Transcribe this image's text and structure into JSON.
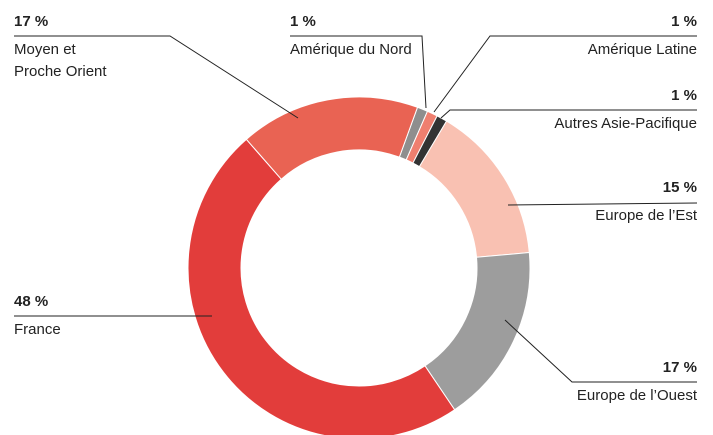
{
  "chart_data": {
    "type": "donut",
    "categories": [
      "Amérique du Nord",
      "Amérique Latine",
      "Autres Asie-Pacifique",
      "Europe de l’Est",
      "Europe de l’Ouest",
      "France",
      "Moyen et Proche Orient"
    ],
    "values": [
      1,
      1,
      1,
      15,
      17,
      48,
      17
    ],
    "value_labels": [
      "1 %",
      "1 %",
      "1 %",
      "15 %",
      "17 %",
      "48 %",
      "17 %"
    ],
    "colors": [
      "#8e8e8e",
      "#ef7f6f",
      "#333333",
      "#f9c1b2",
      "#9d9d9d",
      "#e23d3b",
      "#e96353"
    ]
  }
}
